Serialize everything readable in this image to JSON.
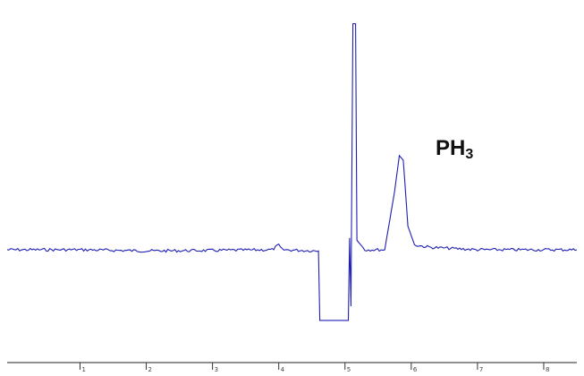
{
  "chart_data": {
    "type": "line",
    "title": "",
    "xlabel": "",
    "ylabel": "",
    "xlim": [
      -0.1,
      8.5
    ],
    "ylim": [
      -0.35,
      1.0
    ],
    "grid": false,
    "legend": "none",
    "line_color": "#1f1fb4",
    "x_ticks": [
      1,
      2,
      3,
      4,
      5,
      6,
      7,
      8
    ],
    "x_tick_labels": [
      "1",
      "2",
      "3",
      "4",
      "5",
      "6",
      "7",
      "8"
    ],
    "series": [
      {
        "points": [
          [
            -0.1,
            0.0
          ],
          [
            1.0,
            0.0
          ],
          [
            2.0,
            -0.005
          ],
          [
            3.0,
            -0.003
          ],
          [
            3.9,
            0.0
          ],
          [
            4.0,
            0.02
          ],
          [
            4.05,
            0.0
          ],
          [
            4.6,
            -0.005
          ],
          [
            4.62,
            -0.3
          ],
          [
            5.05,
            -0.3
          ],
          [
            5.07,
            0.05
          ],
          [
            5.09,
            -0.24
          ],
          [
            5.12,
            0.96
          ],
          [
            5.16,
            0.96
          ],
          [
            5.18,
            0.04
          ],
          [
            5.3,
            0.0
          ],
          [
            5.6,
            0.0
          ],
          [
            5.75,
            0.25
          ],
          [
            5.82,
            0.4
          ],
          [
            5.88,
            0.38
          ],
          [
            5.95,
            0.1
          ],
          [
            6.05,
            0.02
          ],
          [
            6.3,
            0.01
          ],
          [
            7.0,
            0.0
          ],
          [
            8.0,
            0.0
          ],
          [
            8.5,
            0.0
          ]
        ]
      }
    ],
    "annotations": [
      {
        "text_main": "PH",
        "text_sub": "3",
        "x": 6.55,
        "y": 0.38
      }
    ]
  }
}
